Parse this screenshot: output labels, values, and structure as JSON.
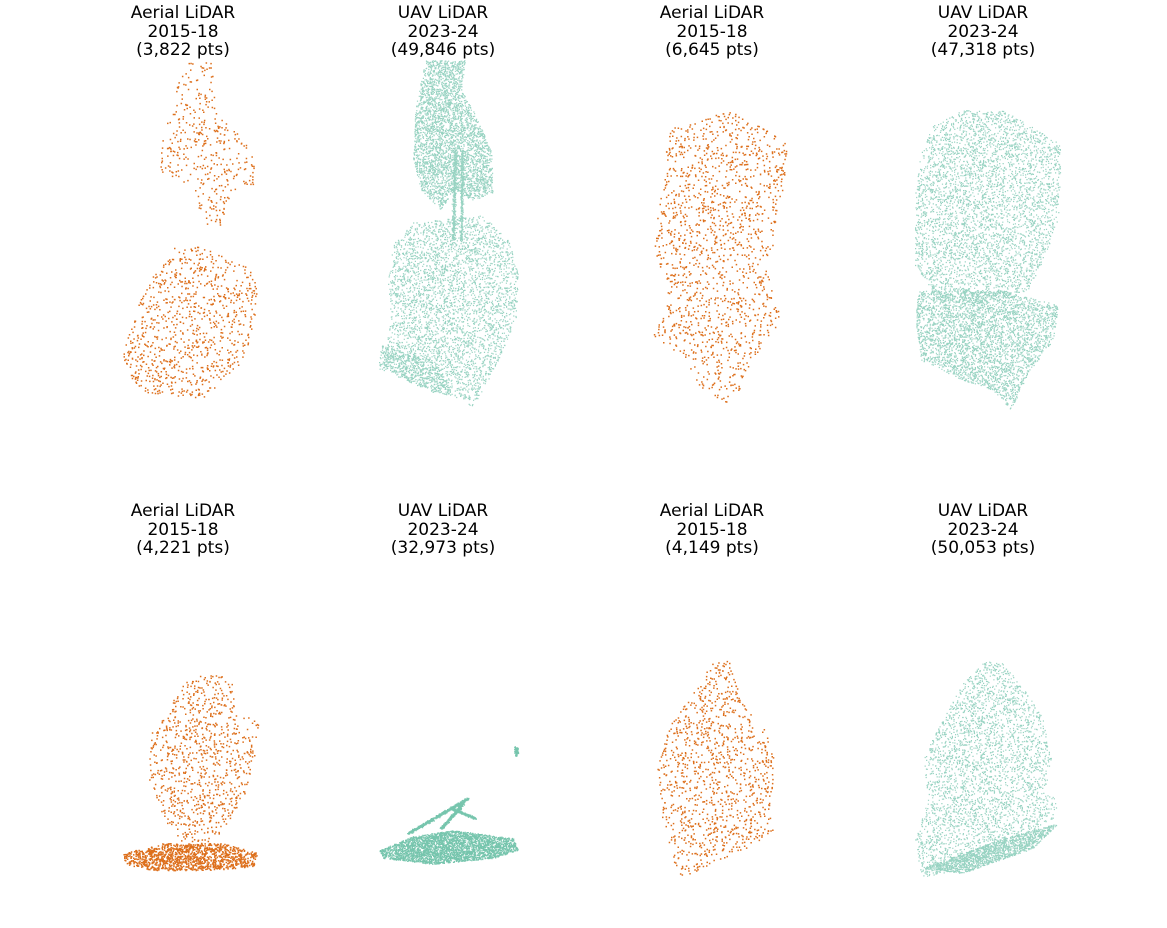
{
  "colors": {
    "aerial": "#d95f02",
    "uav": "#1b9e77"
  },
  "panels": [
    {
      "sensor": "Aerial LiDAR",
      "years": "2015-18",
      "points": "(3,822 pts)",
      "color_key": "aerial",
      "icon": "aerial-point-cloud"
    },
    {
      "sensor": "UAV LiDAR",
      "years": "2023-24",
      "points": "(49,846 pts)",
      "color_key": "uav",
      "icon": "uav-point-cloud"
    },
    {
      "sensor": "Aerial LiDAR",
      "years": "2015-18",
      "points": "(6,645 pts)",
      "color_key": "aerial",
      "icon": "aerial-point-cloud"
    },
    {
      "sensor": "UAV LiDAR",
      "years": "2023-24",
      "points": "(47,318 pts)",
      "color_key": "uav",
      "icon": "uav-point-cloud"
    },
    {
      "sensor": "Aerial LiDAR",
      "years": "2015-18",
      "points": "(4,221 pts)",
      "color_key": "aerial",
      "icon": "aerial-point-cloud"
    },
    {
      "sensor": "UAV LiDAR",
      "years": "2023-24",
      "points": "(32,973 pts)",
      "color_key": "uav",
      "icon": "uav-point-cloud"
    },
    {
      "sensor": "Aerial LiDAR",
      "years": "2015-18",
      "points": "(4,149 pts)",
      "color_key": "aerial",
      "icon": "aerial-point-cloud"
    },
    {
      "sensor": "UAV LiDAR",
      "years": "2023-24",
      "points": "(50,053 pts)",
      "color_key": "uav",
      "icon": "uav-point-cloud"
    }
  ]
}
